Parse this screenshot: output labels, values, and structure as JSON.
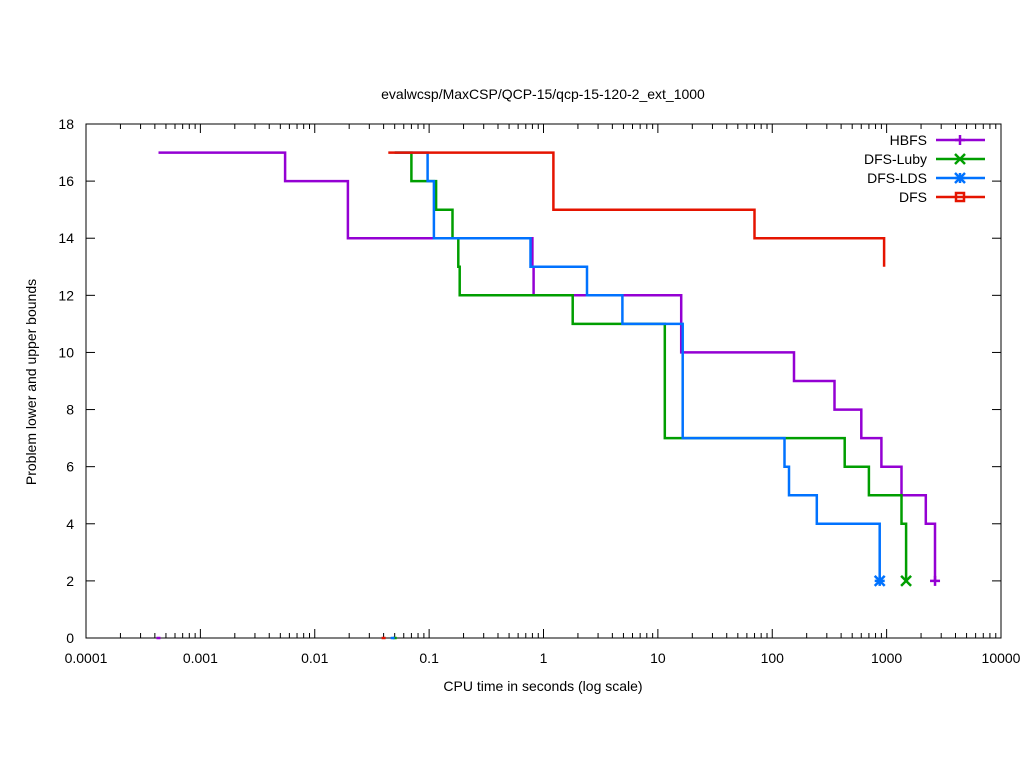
{
  "chart_data": {
    "type": "line",
    "title": "evalwcsp/MaxCSP/QCP-15/qcp-15-120-2_ext_1000",
    "xlabel": "CPU time in seconds (log scale)",
    "ylabel": "Problem lower and upper bounds",
    "xscale": "log",
    "xlim": [
      0.0001,
      10000
    ],
    "ylim": [
      0,
      18
    ],
    "xticks": [
      0.0001,
      0.001,
      0.01,
      0.1,
      1,
      10,
      100,
      1000,
      10000
    ],
    "xtick_labels": [
      "0.0001",
      "0.001",
      "0.01",
      "0.1",
      "1",
      "10",
      "100",
      "1000",
      "10000"
    ],
    "yticks": [
      0,
      2,
      4,
      6,
      8,
      10,
      12,
      14,
      16,
      18
    ],
    "ytick_labels": [
      "0",
      "2",
      "4",
      "6",
      "8",
      "10",
      "12",
      "14",
      "16",
      "18"
    ],
    "legend_position": "top-right",
    "series": [
      {
        "name": "HBFS",
        "color": "#9400d3",
        "marker": "plus",
        "upper": [
          [
            0.00043,
            17
          ],
          [
            0.0055,
            17
          ],
          [
            0.0055,
            16
          ],
          [
            0.0195,
            16
          ],
          [
            0.0195,
            14
          ],
          [
            0.8,
            14
          ],
          [
            0.8,
            13
          ],
          [
            0.82,
            13
          ],
          [
            0.82,
            12
          ],
          [
            16,
            12
          ],
          [
            16,
            10
          ],
          [
            155,
            10
          ],
          [
            155,
            9
          ],
          [
            350,
            9
          ],
          [
            350,
            8
          ],
          [
            600,
            8
          ],
          [
            600,
            7
          ],
          [
            900,
            7
          ],
          [
            900,
            6
          ],
          [
            1350,
            6
          ],
          [
            1350,
            5
          ],
          [
            2200,
            5
          ],
          [
            2200,
            4
          ],
          [
            2650,
            4
          ],
          [
            2650,
            2
          ]
        ],
        "lower": [
          [
            0.00043,
            0
          ]
        ],
        "end_marker": [
          2650,
          2
        ]
      },
      {
        "name": "DFS-Luby",
        "color": "#009e00",
        "marker": "cross",
        "upper": [
          [
            0.05,
            17
          ],
          [
            0.07,
            17
          ],
          [
            0.07,
            16
          ],
          [
            0.115,
            16
          ],
          [
            0.115,
            15
          ],
          [
            0.16,
            15
          ],
          [
            0.16,
            14
          ],
          [
            0.18,
            14
          ],
          [
            0.18,
            13
          ],
          [
            0.185,
            13
          ],
          [
            0.185,
            12
          ],
          [
            1.8,
            12
          ],
          [
            1.8,
            11
          ],
          [
            11.5,
            11
          ],
          [
            11.5,
            7
          ],
          [
            430,
            7
          ],
          [
            430,
            6
          ],
          [
            700,
            6
          ],
          [
            700,
            5
          ],
          [
            1350,
            5
          ],
          [
            1350,
            4
          ],
          [
            1480,
            4
          ],
          [
            1480,
            2
          ]
        ],
        "lower": [
          [
            0.05,
            0
          ]
        ],
        "end_marker": [
          1480,
          2
        ]
      },
      {
        "name": "DFS-LDS",
        "color": "#0072ff",
        "marker": "star",
        "upper": [
          [
            0.05,
            17
          ],
          [
            0.097,
            17
          ],
          [
            0.097,
            16
          ],
          [
            0.11,
            16
          ],
          [
            0.11,
            14
          ],
          [
            0.77,
            14
          ],
          [
            0.77,
            13
          ],
          [
            2.4,
            13
          ],
          [
            2.4,
            12
          ],
          [
            4.9,
            12
          ],
          [
            4.9,
            11
          ],
          [
            16.5,
            11
          ],
          [
            16.5,
            7
          ],
          [
            128,
            7
          ],
          [
            128,
            6
          ],
          [
            140,
            6
          ],
          [
            140,
            5
          ],
          [
            245,
            5
          ],
          [
            245,
            4
          ],
          [
            870,
            4
          ],
          [
            870,
            2
          ]
        ],
        "lower": [
          [
            0.048,
            0
          ]
        ],
        "end_marker": [
          870,
          2
        ]
      },
      {
        "name": "DFS",
        "color": "#e51400",
        "marker": "square",
        "upper": [
          [
            0.044,
            17
          ],
          [
            1.22,
            17
          ],
          [
            1.22,
            15
          ],
          [
            70,
            15
          ],
          [
            70,
            14
          ],
          [
            950,
            14
          ],
          [
            950,
            13
          ]
        ],
        "lower": [
          [
            0.04,
            0
          ]
        ],
        "end_marker": null
      }
    ]
  }
}
